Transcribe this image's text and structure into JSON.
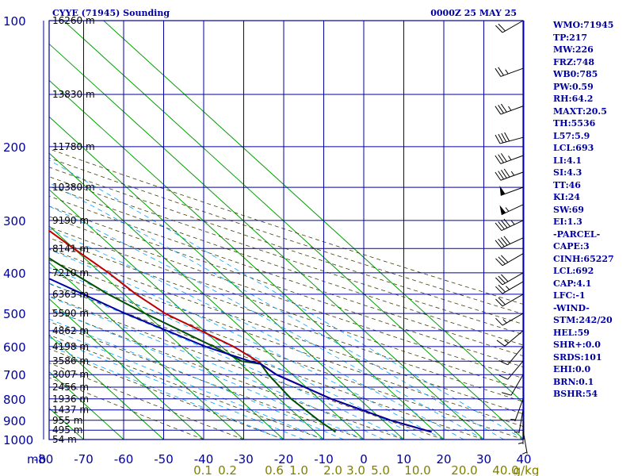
{
  "header": {
    "title": "CYYE (71945) Sounding",
    "datetime": "0000Z 25 MAY 25"
  },
  "indices": [
    "WMO:71945",
    "TP:217",
    "MW:226",
    "FRZ:748",
    "WB0:785",
    "PW:0.59",
    "RH:64.2",
    "MAXT:20.5",
    "TH:5536",
    "L57:5.9",
    "LCL:693",
    "LI:4.1",
    "SI:4.3",
    "TT:46",
    "KI:24",
    "SW:69",
    "EI:1.3",
    "-PARCEL-",
    "CAPE:3",
    "CINH:65227",
    "LCL:692",
    "CAP:4.1",
    "LFC:-1",
    "-WIND-",
    "STM:242/20",
    "HEL:59",
    "SHR+:0.0",
    "SRDS:101",
    "EHI:0.0",
    "BRN:0.1",
    "BSHR:54"
  ],
  "colors": {
    "grid": "#0000a0",
    "isotherm": "#00a000",
    "dry_adiabat": "#404000",
    "moist_adiabat": "#00a0ff",
    "temperature": "#c00000",
    "dewpoint": "#005000",
    "parcel": "#0000a0",
    "wind": "#000000",
    "xlabel": "#0000a0",
    "mixing_label": "#808000"
  },
  "chart_data": {
    "type": "line",
    "subtype": "skew-T log-P sounding",
    "pressure_ticks": [
      100,
      200,
      300,
      400,
      500,
      600,
      700,
      800,
      900,
      1000
    ],
    "x_unit_label": "mb",
    "x_ticks": [
      -80,
      -70,
      -60,
      -50,
      -40,
      -30,
      -20,
      -10,
      0,
      10,
      20,
      30,
      40
    ],
    "y_range_mb": [
      100,
      1000
    ],
    "height_labels": [
      {
        "p": 100,
        "label": "16260 m"
      },
      {
        "p": 150,
        "label": "13830 m"
      },
      {
        "p": 200,
        "label": "11780 m"
      },
      {
        "p": 250,
        "label": "10380 m"
      },
      {
        "p": 300,
        "label": "9190 m"
      },
      {
        "p": 350,
        "label": "8141 m"
      },
      {
        "p": 400,
        "label": "7210 m"
      },
      {
        "p": 450,
        "label": "6363 m"
      },
      {
        "p": 500,
        "label": "5590 m"
      },
      {
        "p": 550,
        "label": "4862 m"
      },
      {
        "p": 600,
        "label": "4198 m"
      },
      {
        "p": 650,
        "label": "3586 m"
      },
      {
        "p": 700,
        "label": "3007 m"
      },
      {
        "p": 750,
        "label": "2456 m"
      },
      {
        "p": 800,
        "label": "1936 m"
      },
      {
        "p": 850,
        "label": "1437 m"
      },
      {
        "p": 900,
        "label": "955 m"
      },
      {
        "p": 950,
        "label": "495 m"
      },
      {
        "p": 1000,
        "label": "54 m"
      }
    ],
    "mixing_ratio_labels": [
      "0.1",
      "0.2",
      "0.6",
      "1.0",
      "2.0",
      "3.0",
      "5.0",
      "10.0",
      "20.0",
      "40.0",
      "g/kg"
    ],
    "series": [
      {
        "role": "temperature",
        "points": [
          [
            100,
            -35
          ],
          [
            110,
            -34
          ],
          [
            120,
            -33
          ],
          [
            130,
            -30
          ],
          [
            140,
            -27
          ],
          [
            160,
            -22
          ],
          [
            180,
            -17
          ],
          [
            200,
            -21
          ],
          [
            220,
            -21
          ],
          [
            250,
            -23
          ],
          [
            300,
            -22
          ],
          [
            350,
            -20
          ],
          [
            400,
            -18
          ],
          [
            450,
            -17
          ],
          [
            500,
            -15
          ],
          [
            600,
            -7
          ],
          [
            650,
            -5
          ],
          [
            660,
            -5
          ],
          [
            700,
            -4
          ],
          [
            800,
            3
          ],
          [
            900,
            12
          ],
          [
            960,
            19
          ]
        ]
      },
      {
        "role": "dewpoint",
        "points": [
          [
            200,
            -40
          ],
          [
            220,
            -34
          ],
          [
            250,
            -35
          ],
          [
            300,
            -34
          ],
          [
            350,
            -30
          ],
          [
            400,
            -27
          ],
          [
            450,
            -24
          ],
          [
            500,
            -20
          ],
          [
            600,
            -12
          ],
          [
            650,
            -9
          ],
          [
            660,
            -5
          ],
          [
            700,
            -6
          ],
          [
            800,
            -7
          ],
          [
            900,
            -6
          ],
          [
            960,
            -5
          ]
        ]
      },
      {
        "role": "parcel",
        "points": [
          [
            190,
            -53
          ],
          [
            300,
            -45
          ],
          [
            400,
            -36
          ],
          [
            500,
            -25
          ],
          [
            600,
            -14
          ],
          [
            650,
            -7
          ],
          [
            660,
            -5
          ],
          [
            700,
            -4
          ],
          [
            800,
            3
          ],
          [
            900,
            12
          ],
          [
            960,
            19
          ]
        ]
      }
    ],
    "winds": [
      {
        "p": 100,
        "dir": 240,
        "spd": 20
      },
      {
        "p": 130,
        "dir": 250,
        "spd": 25
      },
      {
        "p": 160,
        "dir": 250,
        "spd": 35
      },
      {
        "p": 190,
        "dir": 255,
        "spd": 40
      },
      {
        "p": 210,
        "dir": 250,
        "spd": 35
      },
      {
        "p": 230,
        "dir": 250,
        "spd": 45
      },
      {
        "p": 250,
        "dir": 250,
        "spd": 50
      },
      {
        "p": 275,
        "dir": 245,
        "spd": 55
      },
      {
        "p": 300,
        "dir": 245,
        "spd": 45
      },
      {
        "p": 330,
        "dir": 245,
        "spd": 40
      },
      {
        "p": 360,
        "dir": 240,
        "spd": 30
      },
      {
        "p": 400,
        "dir": 240,
        "spd": 30
      },
      {
        "p": 420,
        "dir": 240,
        "spd": 25
      },
      {
        "p": 450,
        "dir": 240,
        "spd": 20
      },
      {
        "p": 500,
        "dir": 240,
        "spd": 15
      },
      {
        "p": 550,
        "dir": 230,
        "spd": 15
      },
      {
        "p": 600,
        "dir": 220,
        "spd": 10
      },
      {
        "p": 650,
        "dir": 220,
        "spd": 10
      },
      {
        "p": 700,
        "dir": 210,
        "spd": 10
      },
      {
        "p": 800,
        "dir": 200,
        "spd": 5
      },
      {
        "p": 850,
        "dir": 190,
        "spd": 5
      },
      {
        "p": 900,
        "dir": 180,
        "spd": 5
      },
      {
        "p": 950,
        "dir": 170,
        "spd": 5
      }
    ]
  }
}
